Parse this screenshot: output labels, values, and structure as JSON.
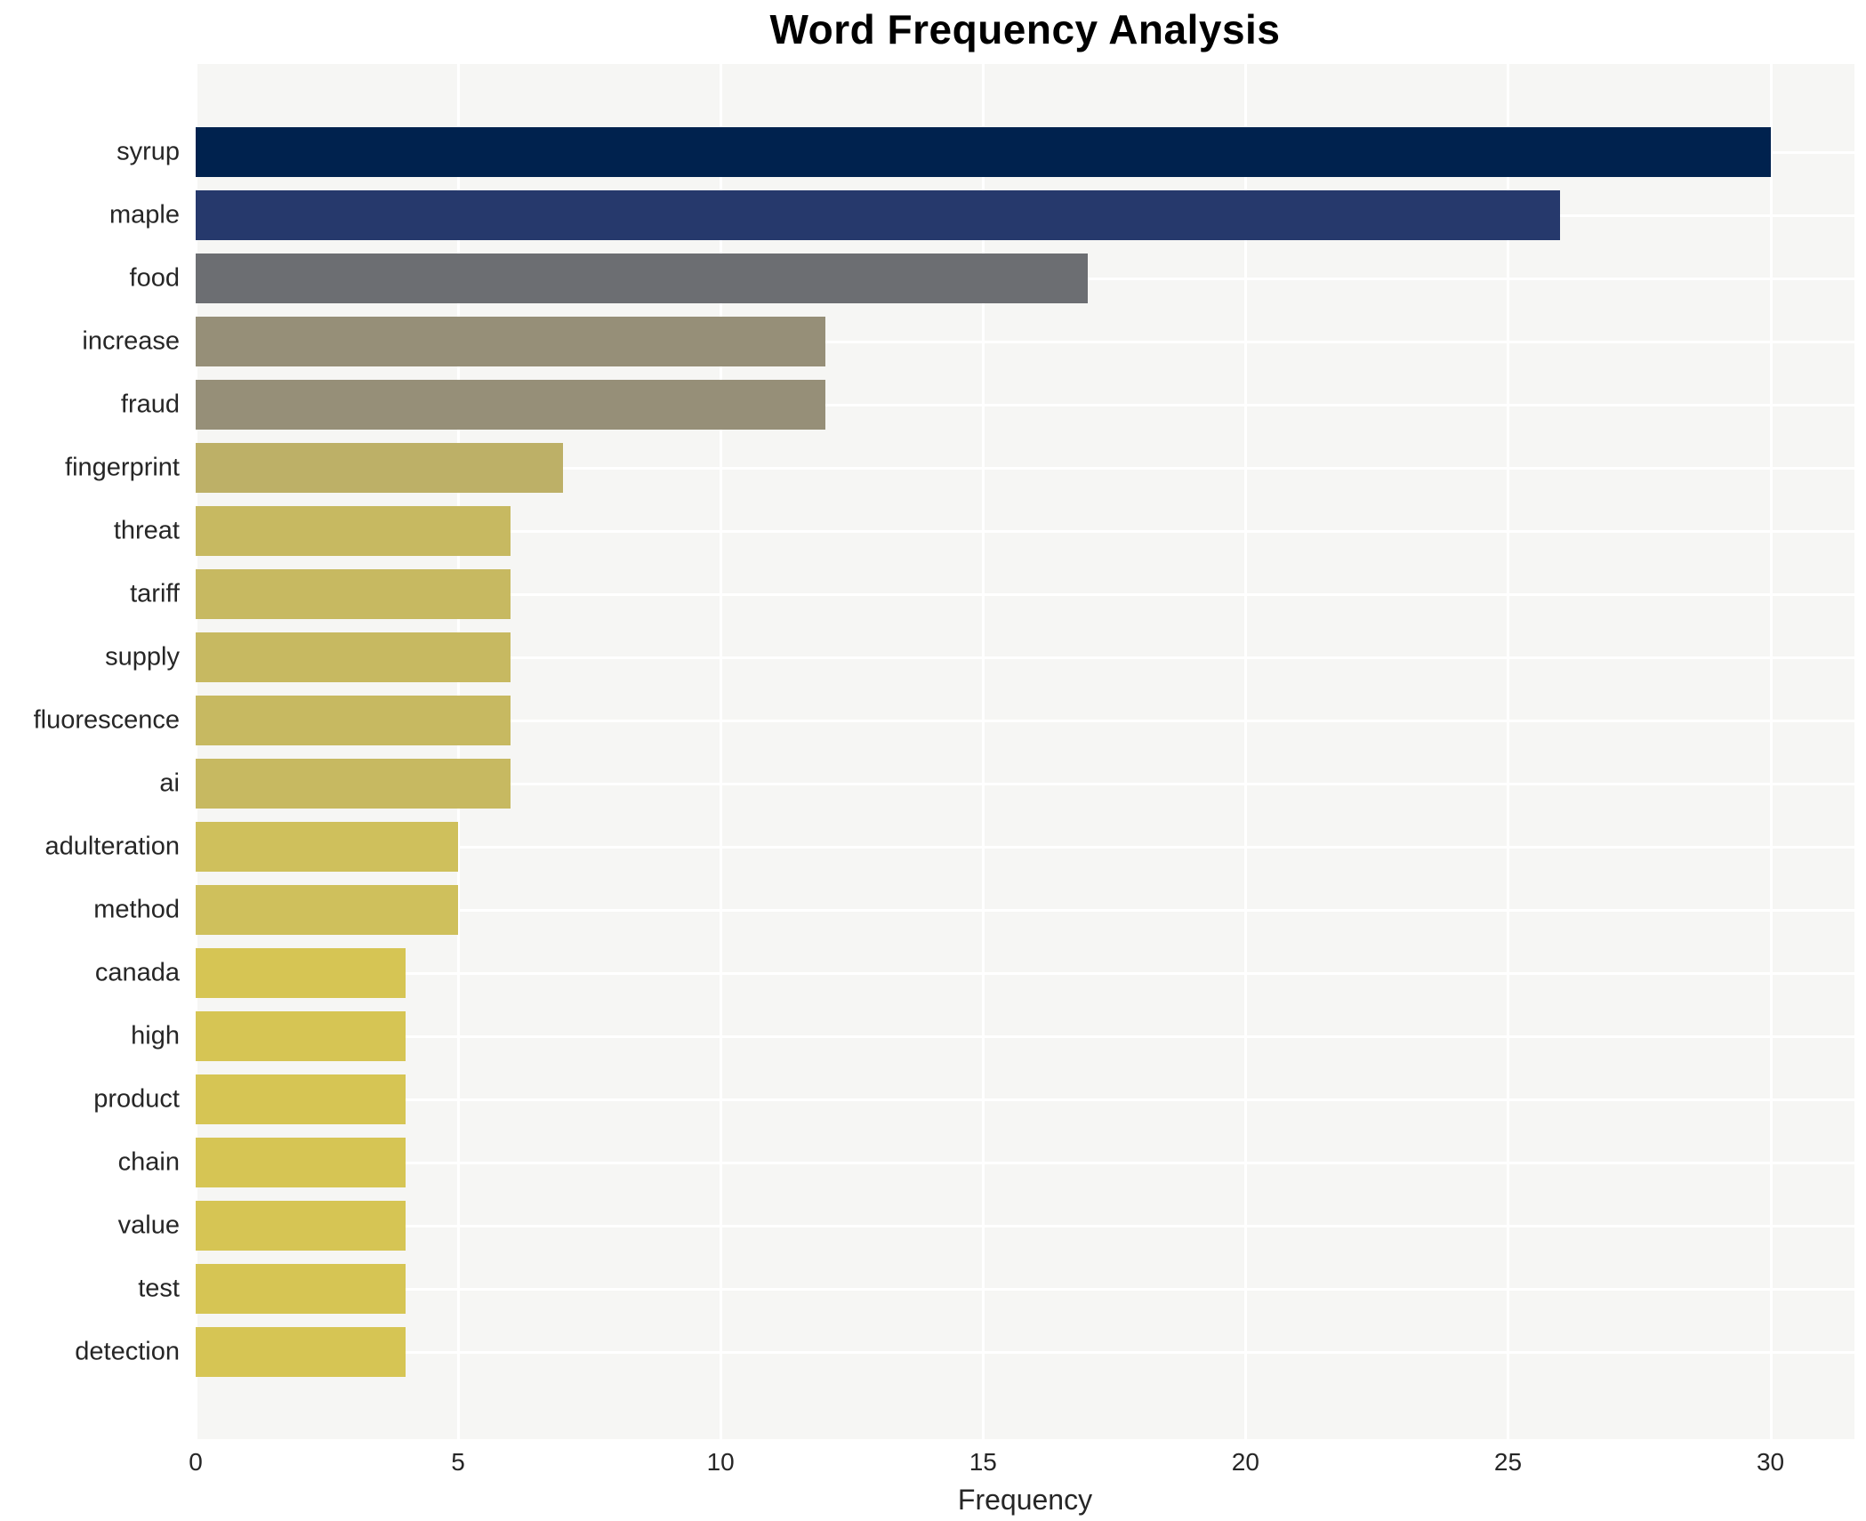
{
  "chart_data": {
    "type": "bar",
    "orientation": "horizontal",
    "title": "Word Frequency Analysis",
    "xlabel": "Frequency",
    "ylabel": "",
    "categories": [
      "syrup",
      "maple",
      "food",
      "increase",
      "fraud",
      "fingerprint",
      "threat",
      "tariff",
      "supply",
      "fluorescence",
      "ai",
      "adulteration",
      "method",
      "canada",
      "high",
      "product",
      "chain",
      "value",
      "test",
      "detection"
    ],
    "values": [
      30,
      26,
      17,
      12,
      12,
      7,
      6,
      6,
      6,
      6,
      6,
      5,
      5,
      4,
      4,
      4,
      4,
      4,
      4,
      4
    ],
    "bar_colors": [
      "#00224e",
      "#26396c",
      "#6c6e72",
      "#968f78",
      "#968f78",
      "#bdb067",
      "#c7b961",
      "#c7b961",
      "#c7b961",
      "#c7b961",
      "#c7b961",
      "#cfc05c",
      "#cfc05c",
      "#d6c554",
      "#d6c554",
      "#d6c554",
      "#d6c554",
      "#d6c554",
      "#d6c554",
      "#d6c554"
    ],
    "x_ticks": [
      0,
      5,
      10,
      15,
      20,
      25,
      30
    ],
    "xlim": [
      0,
      31.6
    ],
    "grid": true,
    "legend_position": "none",
    "plot_background": "#f6f6f4",
    "grid_color": "#ffffff",
    "text_color": "#262626",
    "title_color": "#000000"
  }
}
